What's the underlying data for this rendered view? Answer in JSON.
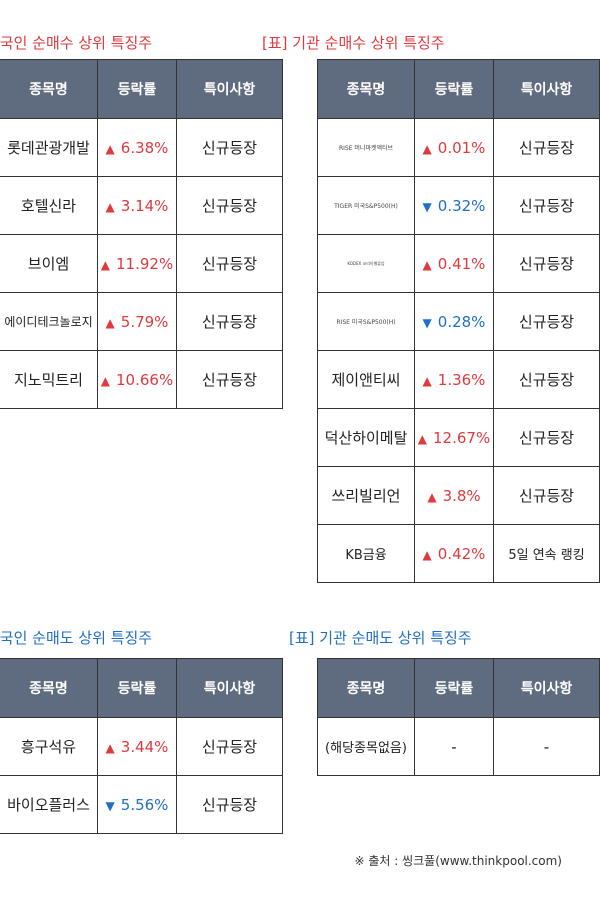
{
  "headers": {
    "name": "종목명",
    "rate": "등락률",
    "note": "특이사항"
  },
  "foreign_buy": {
    "title": "외국인 순매수 상위 특징주",
    "rows": [
      {
        "name": "롯데관광개발",
        "arrow": "▲",
        "dir": "up",
        "rate": "6.38%",
        "note": "신규등장"
      },
      {
        "name": "호텔신라",
        "arrow": "▲",
        "dir": "up",
        "rate": "3.14%",
        "note": "신규등장"
      },
      {
        "name": "브이엠",
        "arrow": "▲",
        "dir": "up",
        "rate": "11.92%",
        "note": "신규등장"
      },
      {
        "name": "에이디테크놀로지",
        "arrow": "▲",
        "dir": "up",
        "rate": "5.79%",
        "note": "신규등장"
      },
      {
        "name": "지노믹트리",
        "arrow": "▲",
        "dir": "up",
        "rate": "10.66%",
        "note": "신규등장"
      }
    ]
  },
  "inst_buy": {
    "title_prefix": "[표]",
    "title": "기관 순매수 상위 특징주",
    "rows": [
      {
        "name": "RISE 머니마켓액티브",
        "size": "tiny",
        "arrow": "▲",
        "dir": "up",
        "rate": "0.01%",
        "note": "신규등장"
      },
      {
        "name": "TIGER 미국S&P500(H)",
        "size": "tiny",
        "arrow": "▼",
        "dir": "down",
        "rate": "0.32%",
        "note": "신규등장"
      },
      {
        "name": "KODEX 코리아밸류업",
        "size": "tiny2",
        "arrow": "▲",
        "dir": "up",
        "rate": "0.41%",
        "note": "신규등장"
      },
      {
        "name": "RISE 미국S&P500(H)",
        "size": "tiny",
        "arrow": "▼",
        "dir": "down",
        "rate": "0.28%",
        "note": "신규등장"
      },
      {
        "name": "제이앤티씨",
        "size": "",
        "arrow": "▲",
        "dir": "up",
        "rate": "1.36%",
        "note": "신규등장"
      },
      {
        "name": "덕산하이메탈",
        "size": "",
        "arrow": "▲",
        "dir": "up",
        "rate": "12.67%",
        "note": "신규등장"
      },
      {
        "name": "쓰리빌리언",
        "size": "",
        "arrow": "▲",
        "dir": "up",
        "rate": "3.8%",
        "note": "신규등장"
      },
      {
        "name": "KB금융",
        "size": "small",
        "arrow": "▲",
        "dir": "up",
        "rate": "0.42%",
        "note": "5일 연속 랭킹"
      }
    ]
  },
  "foreign_sell": {
    "title": "외국인 순매도 상위 특징주",
    "rows": [
      {
        "name": "흥구석유",
        "arrow": "▲",
        "dir": "up",
        "rate": "3.44%",
        "note": "신규등장"
      },
      {
        "name": "바이오플러스",
        "arrow": "▼",
        "dir": "down",
        "rate": "5.56%",
        "note": "신규등장"
      }
    ]
  },
  "inst_sell": {
    "title_prefix": "[표]",
    "title": "기관 순매도 상위 특징주",
    "row": {
      "name": "(해당종목없음)",
      "rate": "-",
      "note": "-"
    }
  },
  "source": "※ 출처 : 씽크풀(www.thinkpool.com)",
  "colors": {
    "header_bg": "#5f6b7e",
    "up": "#e03a3e",
    "down": "#1f6fc4"
  }
}
